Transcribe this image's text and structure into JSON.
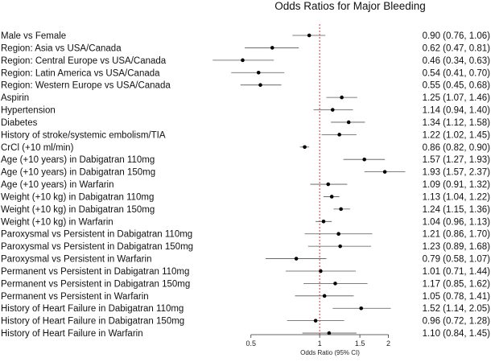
{
  "chart_data": {
    "type": "forest",
    "title": "Odds Ratios for Major Bleeding",
    "xlabel": "Odds Ratio (95% CI)",
    "xscale": "log",
    "xlim": [
      0.44,
      2.5
    ],
    "xticks": [
      0.5,
      1,
      1.5,
      2
    ],
    "xtick_labels": [
      "0.5",
      "1",
      "1.5",
      "2"
    ],
    "reference_line": 1,
    "reference_line_color": "#e03030",
    "rows": [
      {
        "label": "Male vs Female",
        "or": 0.9,
        "lo": 0.76,
        "hi": 1.06,
        "text": "0.90 (0.76, 1.06)"
      },
      {
        "label": "Region: Asia vs USA/Canada",
        "or": 0.62,
        "lo": 0.47,
        "hi": 0.81,
        "text": "0.62 (0.47, 0.81)"
      },
      {
        "label": "Region: Central Europe vs USA/Canada",
        "or": 0.46,
        "lo": 0.34,
        "hi": 0.63,
        "text": "0.46 (0.34, 0.63)"
      },
      {
        "label": "Region: Latin America vs USA/Canada",
        "or": 0.54,
        "lo": 0.41,
        "hi": 0.7,
        "text": "0.54 (0.41, 0.70)"
      },
      {
        "label": "Region: Western Europe vs USA/Canada",
        "or": 0.55,
        "lo": 0.45,
        "hi": 0.68,
        "text": "0.55 (0.45, 0.68)"
      },
      {
        "label": "Aspirin",
        "or": 1.25,
        "lo": 1.07,
        "hi": 1.46,
        "text": "1.25 (1.07, 1.46)"
      },
      {
        "label": "Hypertension",
        "or": 1.14,
        "lo": 0.94,
        "hi": 1.4,
        "text": "1.14 (0.94, 1.40)"
      },
      {
        "label": "Diabetes",
        "or": 1.34,
        "lo": 1.12,
        "hi": 1.58,
        "text": "1.34 (1.12, 1.58)"
      },
      {
        "label": "History of stroke/systemic embolism/TIA",
        "or": 1.22,
        "lo": 1.02,
        "hi": 1.45,
        "text": "1.22 (1.02, 1.45)"
      },
      {
        "label": "CrCl (+10 ml/min)",
        "or": 0.86,
        "lo": 0.82,
        "hi": 0.9,
        "text": "0.86 (0.82, 0.90)"
      },
      {
        "label": "Age (+10 years) in Dabigatran 110mg",
        "or": 1.57,
        "lo": 1.27,
        "hi": 1.93,
        "text": "1.57 (1.27, 1.93)"
      },
      {
        "label": "Age (+10 years) in Dabigatran 150mg",
        "or": 1.93,
        "lo": 1.57,
        "hi": 2.37,
        "text": "1.93 (1.57, 2.37)"
      },
      {
        "label": "Age (+10 years) in Warfarin",
        "or": 1.09,
        "lo": 0.91,
        "hi": 1.32,
        "text": "1.09 (0.91, 1.32)"
      },
      {
        "label": "Weight (+10 kg) in Dabigatran 110mg",
        "or": 1.13,
        "lo": 1.04,
        "hi": 1.22,
        "text": "1.13 (1.04, 1.22)"
      },
      {
        "label": "Weight (+10 kg) in Dabigatran 150mg",
        "or": 1.24,
        "lo": 1.15,
        "hi": 1.36,
        "text": "1.24 (1.15, 1.36)"
      },
      {
        "label": "Weight (+10 kg) in Warfarin",
        "or": 1.04,
        "lo": 0.96,
        "hi": 1.13,
        "text": "1.04 (0.96, 1.13)"
      },
      {
        "label": "Paroxysmal vs Persistent in Dabigatran 110mg",
        "or": 1.21,
        "lo": 0.86,
        "hi": 1.7,
        "text": "1.21 (0.86, 1.70)"
      },
      {
        "label": "Paroxysmal vs Persistent in Dabigatran 150mg",
        "or": 1.23,
        "lo": 0.89,
        "hi": 1.68,
        "text": "1.23 (0.89, 1.68)"
      },
      {
        "label": "Paroxysmal vs Persistent in Warfarin",
        "or": 0.79,
        "lo": 0.58,
        "hi": 1.07,
        "text": "0.79 (0.58, 1.07)"
      },
      {
        "label": "Permanent vs Persistent in Dabigatran 110mg",
        "or": 1.01,
        "lo": 0.71,
        "hi": 1.44,
        "text": "1.01 (0.71, 1.44)"
      },
      {
        "label": "Permanent vs Persistent in Dabigatran 150mg",
        "or": 1.17,
        "lo": 0.85,
        "hi": 1.62,
        "text": "1.17 (0.85, 1.62)"
      },
      {
        "label": "Permanent vs Persistent in Warfarin",
        "or": 1.05,
        "lo": 0.78,
        "hi": 1.41,
        "text": "1.05 (0.78, 1.41)"
      },
      {
        "label": "History of Heart Failure in Dabigatran 110mg",
        "or": 1.52,
        "lo": 1.14,
        "hi": 2.05,
        "text": "1.52 (1.14, 2.05)"
      },
      {
        "label": "History of Heart Failure in Dabigatran 150mg",
        "or": 0.96,
        "lo": 0.72,
        "hi": 1.28,
        "text": "0.96 (0.72, 1.28)"
      },
      {
        "label": "History of Heart Failure in Warfarin",
        "or": 1.1,
        "lo": 0.84,
        "hi": 1.45,
        "text": "1.10 (0.84, 1.45)"
      }
    ]
  }
}
